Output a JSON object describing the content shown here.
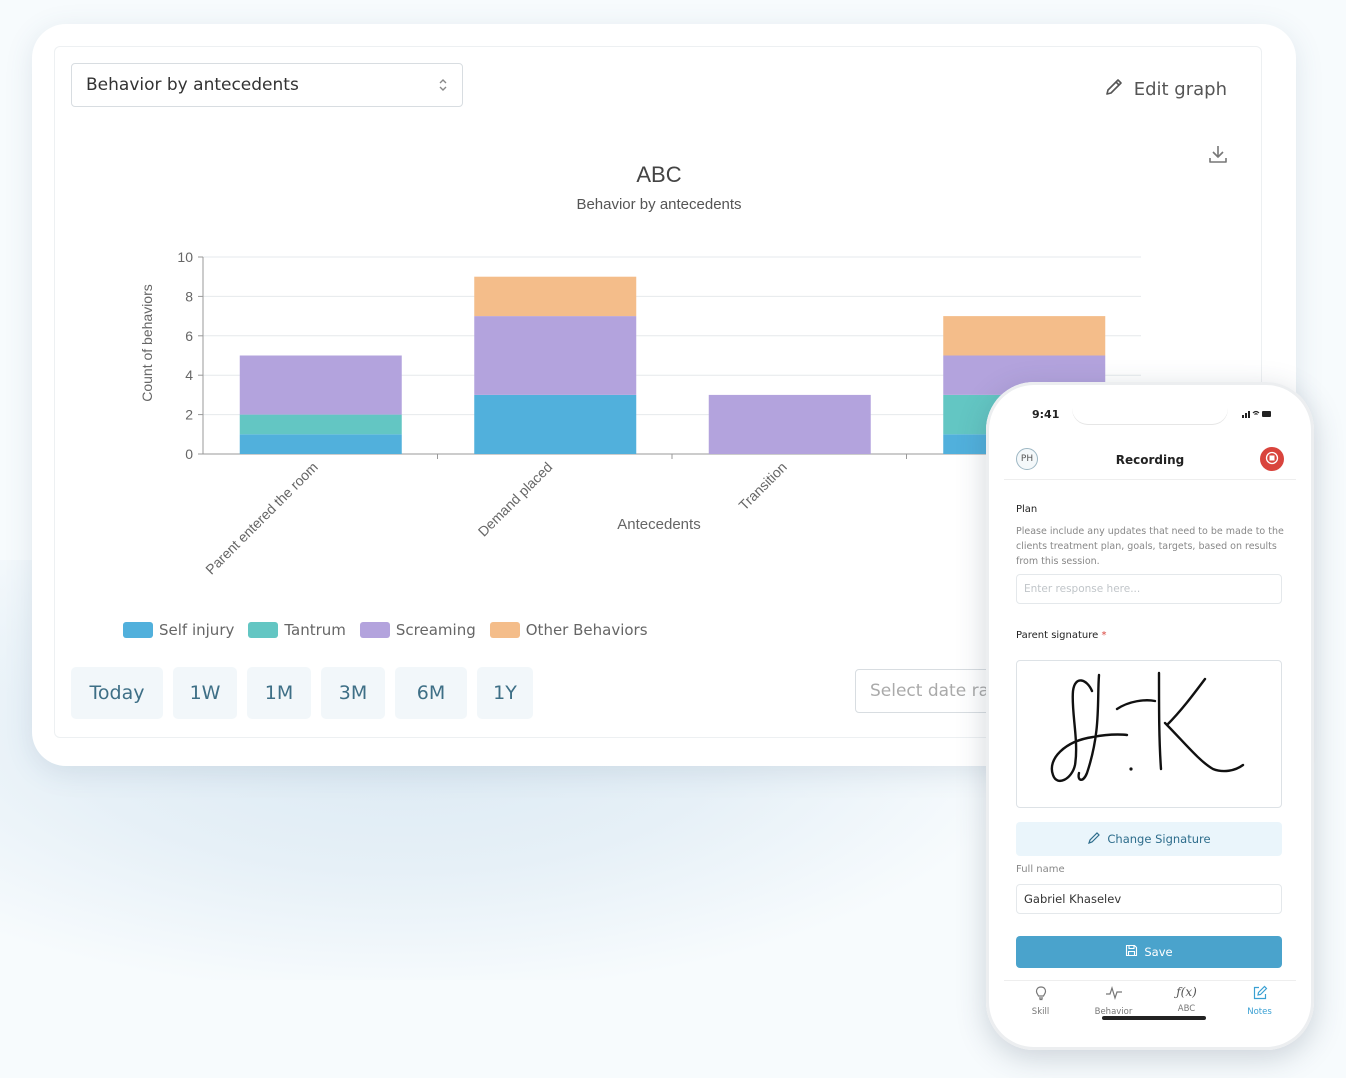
{
  "dashboard": {
    "select_value": "Behavior by antecedents",
    "edit_graph_label": "Edit graph",
    "date_placeholder": "Select date ra",
    "range_buttons": [
      "Today",
      "1W",
      "1M",
      "3M",
      "6M",
      "1Y"
    ]
  },
  "chart_data": {
    "type": "bar",
    "stacked": true,
    "title": "ABC",
    "subtitle": "Behavior by antecedents",
    "xlabel": "Antecedents",
    "ylabel": "Count of behaviors",
    "ylim": [
      0,
      10
    ],
    "yticks": [
      0,
      2,
      4,
      6,
      8,
      10
    ],
    "categories": [
      "Parent entered the room",
      "Demand placed",
      "Transition",
      ""
    ],
    "series": [
      {
        "name": "Self injury",
        "color": "#51b0dc",
        "values": [
          1,
          3,
          0,
          1
        ]
      },
      {
        "name": "Tantrum",
        "color": "#63c6c3",
        "values": [
          1,
          0,
          0,
          2
        ]
      },
      {
        "name": "Screaming",
        "color": "#b3a3dd",
        "values": [
          3,
          4,
          3,
          2
        ]
      },
      {
        "name": "Other Behaviors",
        "color": "#f4bd8a",
        "values": [
          0,
          2,
          0,
          2
        ]
      }
    ],
    "grid": true,
    "legend_position": "bottom-left"
  },
  "phone": {
    "time": "9:41",
    "avatar_initials": "PH",
    "title": "Recording",
    "plan_label": "Plan",
    "plan_help": "Please include any updates that need to be made to the clients treatment plan, goals, targets, based on results from this session.",
    "plan_placeholder": "Enter response here...",
    "signature_label": "Parent signature",
    "required_mark": "*",
    "signature_text": "G.K",
    "change_signature_label": "Change Signature",
    "full_name_label": "Full name",
    "full_name_value": "Gabriel Khaselev",
    "save_label": "Save",
    "tabs": [
      {
        "label": "Skill",
        "icon": "lightbulb-icon"
      },
      {
        "label": "Behavior",
        "icon": "pulse-icon"
      },
      {
        "label": "ABC",
        "icon": "function-icon"
      },
      {
        "label": "Notes",
        "icon": "edit-icon"
      }
    ],
    "tabs_active": "Notes"
  }
}
